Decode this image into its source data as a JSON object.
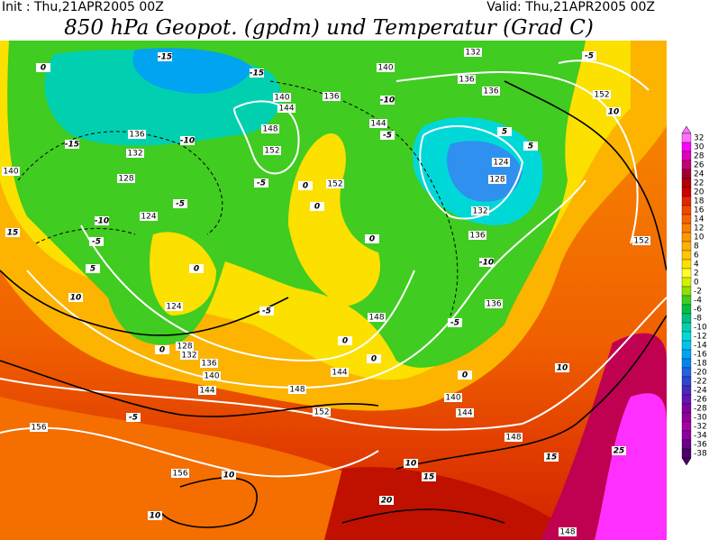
{
  "header": {
    "init": "Init : Thu,21APR2005 00Z",
    "valid": "Valid: Thu,21APR2005 00Z",
    "title": "850 hPa Geopot. (gpdm) und Temperatur (Grad C)"
  },
  "geopotential_labels": [
    140,
    132,
    136,
    136,
    152,
    140,
    144,
    136,
    144,
    136,
    132,
    148,
    152,
    128,
    124,
    152,
    124,
    128,
    132,
    136,
    152,
    124,
    148,
    136,
    128,
    132,
    136,
    140,
    144,
    148,
    152,
    144,
    140,
    144,
    148,
    156,
    156,
    148,
    140
  ],
  "temperature_labels": [
    0,
    -15,
    -15,
    -10,
    -5,
    -10,
    -15,
    -5,
    0,
    0,
    -5,
    -10,
    -5,
    5,
    10,
    15,
    0,
    0,
    -10,
    -5,
    0,
    0,
    0,
    0,
    -5,
    -5,
    10,
    10,
    15,
    15,
    10,
    10,
    -5,
    5,
    5,
    25,
    20,
    10
  ],
  "colorbar": {
    "ticks": [
      32,
      30,
      28,
      26,
      24,
      22,
      20,
      18,
      16,
      14,
      12,
      10,
      8,
      6,
      4,
      2,
      0,
      -2,
      -4,
      -6,
      -8,
      -10,
      -12,
      -14,
      -16,
      -18,
      -20,
      -22,
      -24,
      -26,
      -28,
      -30,
      -32,
      -34,
      -36,
      -38
    ],
    "colors": [
      "#ff70ff",
      "#ff00ff",
      "#e000b8",
      "#c40078",
      "#a00030",
      "#b40000",
      "#d00000",
      "#e22800",
      "#f04800",
      "#f86400",
      "#fa7e00",
      "#fc9800",
      "#ffb000",
      "#ffc800",
      "#ffe000",
      "#ffff30",
      "#d4f000",
      "#90e000",
      "#40cc20",
      "#00c040",
      "#00c080",
      "#00d0b0",
      "#00dada",
      "#00c4f0",
      "#00a4f0",
      "#0084f0",
      "#2064e0",
      "#3044d0",
      "#4828c0",
      "#6414b0",
      "#8000a0",
      "#940094",
      "#a800a8",
      "#8c00a0",
      "#6c0088",
      "#4c0068"
    ]
  }
}
